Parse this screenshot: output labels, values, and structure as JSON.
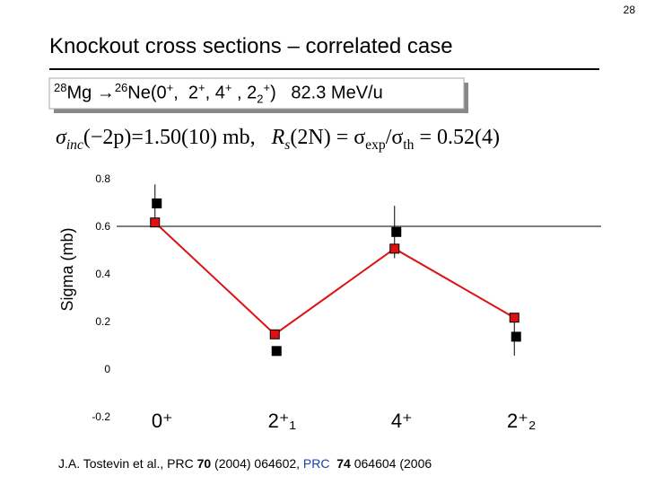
{
  "page_number": "28",
  "title": "Knockout cross sections – correlated case",
  "subtitle": [
    {
      "t": "28",
      "s": "sup"
    },
    {
      "t": "Mg →"
    },
    {
      "t": "26",
      "s": "sup"
    },
    {
      "t": "Ne(0"
    },
    {
      "t": "+",
      "s": "sup"
    },
    {
      "t": ",  2"
    },
    {
      "t": "+",
      "s": "sup"
    },
    {
      "t": ", 4"
    },
    {
      "t": "+",
      "s": "sup"
    },
    {
      "t": " , 2"
    },
    {
      "t": "2",
      "s": "sub"
    },
    {
      "t": "+",
      "s": "sup"
    },
    {
      "t": ")   82.3 MeV/u"
    }
  ],
  "formula": [
    {
      "t": "σ",
      "s": "i"
    },
    {
      "t": "inc",
      "s": "sub i"
    },
    {
      "t": "(−2p)=1.50(10) mb,   "
    },
    {
      "t": "R",
      "s": "i"
    },
    {
      "t": "s",
      "s": "sub i"
    },
    {
      "t": "(2N) = σ"
    },
    {
      "t": "exp",
      "s": "sub"
    },
    {
      "t": "/σ"
    },
    {
      "t": "th",
      "s": "sub"
    },
    {
      "t": " = 0.52(4)"
    }
  ],
  "reference": [
    {
      "t": "J.A. Tostevin et al., PRC "
    },
    {
      "t": "70",
      "s": "b"
    },
    {
      "t": " (2004) 064602, "
    },
    {
      "t": "PRC  ",
      "s": "blue"
    },
    {
      "t": "74",
      "s": "b"
    },
    {
      "t": " 064604 (2006"
    }
  ],
  "chart_data": {
    "type": "scatter",
    "y_label": "Sigma  (mb)",
    "categories": [
      "0⁺",
      "2⁺₁",
      "4⁺",
      "2⁺₂"
    ],
    "ylim": [
      -0.2,
      0.8
    ],
    "yticks": [
      0.8,
      0.6,
      0.4,
      0.2,
      0,
      -0.2
    ],
    "series": [
      {
        "color": "#dd1111",
        "connected": true,
        "values": [
          0.62,
          0.15,
          0.51,
          0.22
        ]
      },
      {
        "color": "#000000",
        "connected": false,
        "values": [
          0.7,
          0.08,
          0.58,
          0.14
        ],
        "errors": [
          0.08,
          0.02,
          0.11,
          0.08
        ]
      }
    ]
  }
}
